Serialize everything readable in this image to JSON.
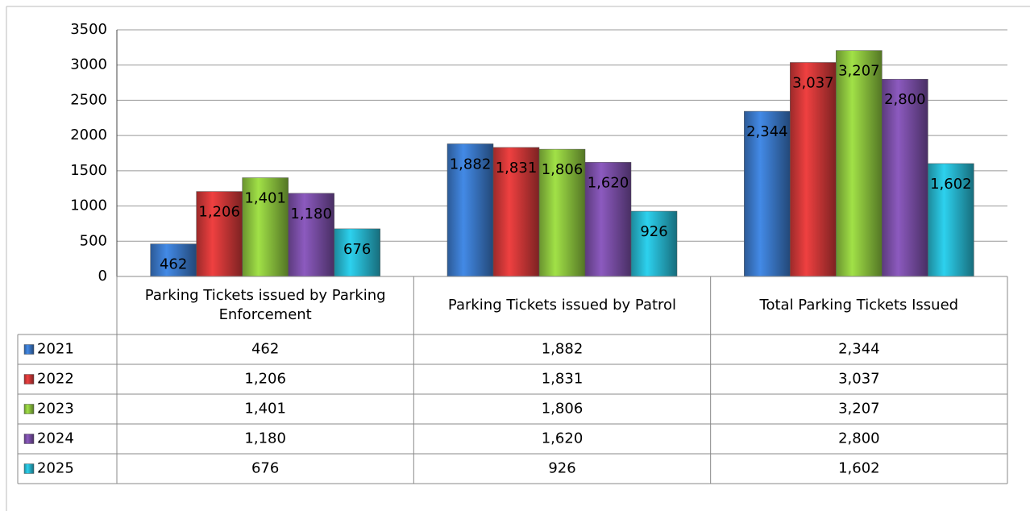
{
  "chart_data": {
    "type": "bar",
    "categories": [
      "Parking Tickets issued by Parking Enforcement",
      "Parking Tickets issued by Patrol",
      "Total Parking Tickets Issued"
    ],
    "series": [
      {
        "name": "2021",
        "color": "#3a78c8",
        "values": [
          462,
          1882,
          2344
        ],
        "value_labels": [
          "462",
          "1,882",
          "2,344"
        ]
      },
      {
        "name": "2022",
        "color": "#d03838",
        "values": [
          1206,
          1831,
          3037
        ],
        "value_labels": [
          "1,206",
          "1,831",
          "3,037"
        ]
      },
      {
        "name": "2023",
        "color": "#8cc43e",
        "values": [
          1401,
          1806,
          3207
        ],
        "value_labels": [
          "1,401",
          "1,806",
          "3,207"
        ]
      },
      {
        "name": "2024",
        "color": "#7a4ea6",
        "values": [
          1180,
          1620,
          2800
        ],
        "value_labels": [
          "1,180",
          "1,620",
          "2,800"
        ]
      },
      {
        "name": "2025",
        "color": "#27b6cf",
        "values": [
          676,
          926,
          1602
        ],
        "value_labels": [
          "676",
          "926",
          "1,602"
        ]
      }
    ],
    "ylim": [
      0,
      3500
    ],
    "yticks": [
      0,
      500,
      1000,
      1500,
      2000,
      2500,
      3000,
      3500
    ],
    "grid": true
  }
}
